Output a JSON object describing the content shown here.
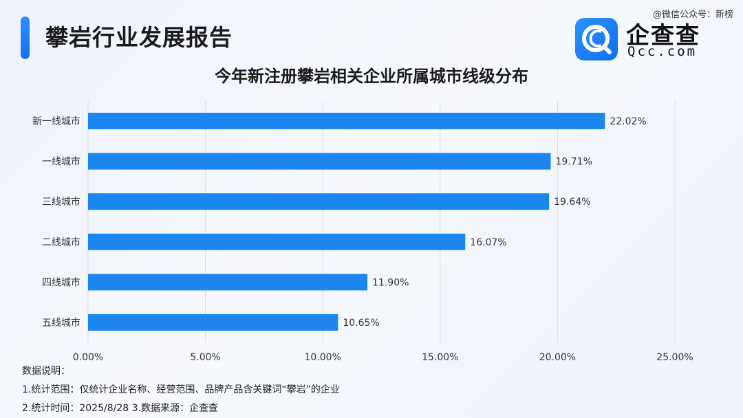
{
  "header": {
    "report_title": "攀岩行业发展报告",
    "watermark": "@微信公众号：新榜",
    "logo_cn": "企查查",
    "logo_en": "Qcc.com"
  },
  "colors": {
    "accent": "#1a7cf0",
    "bar": "#1b87ee",
    "grid": "#d8dde6"
  },
  "chart_data": {
    "type": "bar",
    "orientation": "horizontal",
    "title": "今年新注册攀岩相关企业所属城市线级分布",
    "categories": [
      "新一线城市",
      "一线城市",
      "三线城市",
      "二线城市",
      "四线城市",
      "五线城市"
    ],
    "values": [
      22.02,
      19.71,
      19.64,
      16.07,
      11.9,
      10.65
    ],
    "data_labels": [
      "22.02%",
      "19.71%",
      "19.64%",
      "16.07%",
      "11.90%",
      "10.65%"
    ],
    "xlim": [
      0,
      25
    ],
    "xticks": [
      0,
      5,
      10,
      15,
      20,
      25
    ],
    "xtick_labels": [
      "0.00%",
      "5.00%",
      "10.00%",
      "15.00%",
      "20.00%",
      "25.00%"
    ],
    "grid": "vertical"
  },
  "notes": {
    "heading": "数据说明：",
    "line1": "1.统计范围：仅统计企业名称、经营范围、品牌产品含关键词“攀岩”的企业",
    "line2": " 2.统计时间：2025/8/28  3.数据来源：企查查"
  }
}
